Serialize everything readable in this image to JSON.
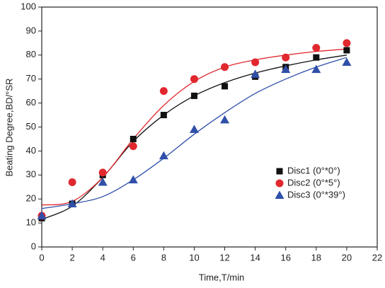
{
  "chart_data": {
    "type": "scatter",
    "x_label": "Time,T/min",
    "y_label": "Beating Degree,BD/°SR",
    "x": [
      0,
      2,
      4,
      6,
      8,
      10,
      12,
      14,
      16,
      18,
      20
    ],
    "series": [
      {
        "name": "Disc1 (0°*0°)",
        "color": "#111111",
        "marker": "square",
        "values": [
          12,
          18,
          30,
          45,
          55,
          63,
          67,
          71,
          75,
          79,
          82
        ],
        "fit": [
          11.5,
          17,
          29,
          44,
          55,
          63,
          68.5,
          72.5,
          75.5,
          78,
          80
        ]
      },
      {
        "name": "Disc2 (0°*5°)",
        "color": "#e0282e",
        "marker": "circle",
        "values": [
          13,
          27,
          31,
          42,
          65,
          70,
          75,
          77,
          79,
          83,
          85
        ],
        "fit": [
          17.5,
          19,
          29,
          45,
          59,
          69,
          75,
          78,
          80,
          81.5,
          82.5
        ]
      },
      {
        "name": "Disc3 (0°*39°)",
        "color": "#2f4fa8",
        "marker": "triangle",
        "values": [
          13,
          18,
          27,
          28,
          38,
          49,
          53,
          72,
          74,
          74,
          77
        ],
        "fit": [
          16,
          18,
          21,
          28,
          37,
          47,
          56,
          64,
          70,
          75,
          79
        ]
      }
    ],
    "xlim": [
      0,
      22
    ],
    "xticks": [
      0,
      2,
      4,
      6,
      8,
      10,
      12,
      14,
      16,
      18,
      20,
      22
    ],
    "ylim": [
      0,
      100
    ],
    "yticks": [
      0,
      10,
      20,
      30,
      40,
      50,
      60,
      70,
      80,
      90,
      100
    ],
    "legend": "lower-right"
  }
}
